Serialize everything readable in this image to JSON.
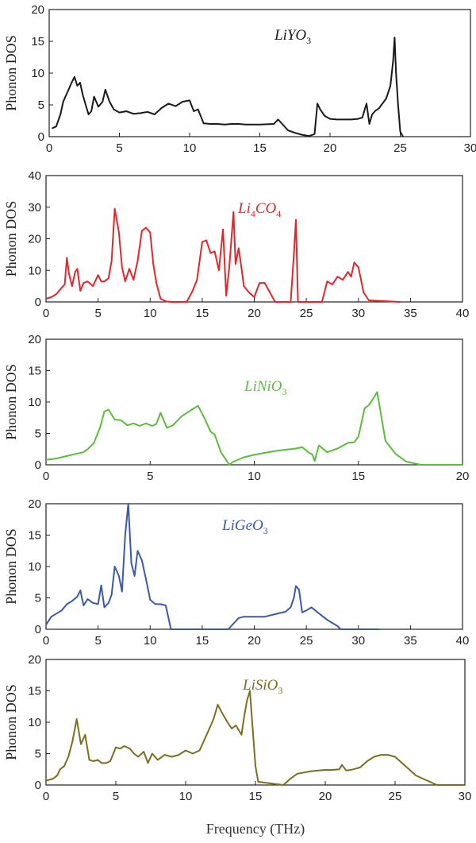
{
  "figure": {
    "xlabel": "Frequency (THz)"
  },
  "chart_data": [
    {
      "type": "line",
      "title": "LiYO",
      "title_sub": "3",
      "ylabel": "Phonon DOS",
      "color": "#1a1a1a",
      "xlim": [
        0,
        30
      ],
      "ylim": [
        0,
        20
      ],
      "xticks": [
        0,
        5,
        10,
        15,
        20,
        25,
        30
      ],
      "yticks": [
        0,
        5,
        10,
        15,
        20
      ],
      "x": [
        0.2,
        0.5,
        0.8,
        1.0,
        1.2,
        1.4,
        1.6,
        1.8,
        2.0,
        2.2,
        2.4,
        2.6,
        2.8,
        3.0,
        3.2,
        3.5,
        3.8,
        4.0,
        4.3,
        4.6,
        5.0,
        5.5,
        6.0,
        6.5,
        7.0,
        7.5,
        8.0,
        8.5,
        9.0,
        9.5,
        10.0,
        10.3,
        10.6,
        11.0,
        11.5,
        12.0,
        12.5,
        13.0,
        13.5,
        14.0,
        15.0,
        16.0,
        16.3,
        16.6,
        17.0,
        17.5,
        18.0,
        18.5,
        18.9,
        19.1,
        19.3,
        19.6,
        20.0,
        20.5,
        21.0,
        21.5,
        22.0,
        22.3,
        22.6,
        22.8,
        23.0,
        23.2,
        23.5,
        24.0,
        24.3,
        24.5,
        24.6,
        24.7,
        24.85,
        25.0,
        25.2
      ],
      "y": [
        1.3,
        1.6,
        3.5,
        5.5,
        6.5,
        7.5,
        8.5,
        9.4,
        8.0,
        8.5,
        6.5,
        5.0,
        3.5,
        4.0,
        6.3,
        4.7,
        5.5,
        7.4,
        5.5,
        4.3,
        3.8,
        4.0,
        3.6,
        3.7,
        3.9,
        3.5,
        4.5,
        5.2,
        4.8,
        5.5,
        5.7,
        4.0,
        4.3,
        2.1,
        2.0,
        2.0,
        1.9,
        2.0,
        2.0,
        1.9,
        1.9,
        2.0,
        2.7,
        2.0,
        1.0,
        0.6,
        0.3,
        0.1,
        0.4,
        5.2,
        4.3,
        3.3,
        2.8,
        2.7,
        2.7,
        2.7,
        2.8,
        3.0,
        5.2,
        2.0,
        3.5,
        4.0,
        4.5,
        6.0,
        8.0,
        12.0,
        15.6,
        10.0,
        5.0,
        0.8,
        0
      ]
    },
    {
      "type": "line",
      "title": "Li",
      "title_sub": "4",
      "title_rest": "CO",
      "title_sub2": "4",
      "ylabel": "Phonon DOS",
      "color": "#e3262a",
      "xlim": [
        0,
        40
      ],
      "ylim": [
        0,
        40
      ],
      "xticks": [
        0,
        5,
        10,
        15,
        20,
        25,
        30,
        35,
        40
      ],
      "yticks": [
        0,
        10,
        20,
        30,
        40
      ],
      "x": [
        0,
        0.5,
        1.0,
        1.5,
        1.8,
        2.0,
        2.2,
        2.5,
        2.8,
        3.0,
        3.3,
        3.6,
        4.0,
        4.5,
        5.0,
        5.3,
        5.6,
        6.0,
        6.3,
        6.6,
        7.0,
        7.3,
        7.6,
        8.0,
        8.4,
        8.8,
        9.2,
        9.6,
        10.0,
        10.3,
        10.6,
        11.0,
        11.5,
        12.0,
        13.5,
        14.0,
        14.5,
        15.0,
        15.4,
        15.8,
        16.2,
        16.6,
        17.0,
        17.3,
        17.6,
        18.0,
        18.2,
        18.5,
        18.8,
        19.0,
        19.5,
        20.0,
        20.5,
        21.0,
        21.5,
        22.0,
        23.5,
        23.8,
        24.0,
        24.2,
        24.5,
        26.5,
        27.0,
        27.5,
        28.0,
        28.5,
        29.0,
        29.3,
        29.6,
        30.0,
        30.5,
        31.0,
        34.0
      ],
      "y": [
        1,
        1.5,
        2.5,
        4.5,
        5.5,
        14.0,
        9.0,
        5.0,
        9.5,
        10.5,
        3.5,
        6.0,
        6.5,
        5.0,
        8.5,
        6.5,
        6.5,
        7.5,
        13.0,
        29.5,
        22.0,
        11.0,
        6.5,
        10.5,
        7.0,
        13.0,
        22.5,
        23.5,
        22.0,
        12.0,
        6.0,
        1.0,
        0.2,
        0,
        0,
        3.0,
        7.0,
        19.0,
        19.5,
        15.5,
        16.0,
        10.0,
        23.0,
        2.0,
        11.0,
        28.5,
        12.0,
        17.0,
        10.0,
        5.0,
        3.0,
        1.5,
        6.0,
        6.0,
        3.0,
        0,
        0,
        15.0,
        26.0,
        0,
        0,
        0,
        6.5,
        5.5,
        8.0,
        7.0,
        9.5,
        8.0,
        12.5,
        11.0,
        3.0,
        0.5,
        0
      ]
    },
    {
      "type": "line",
      "title": "LiNiO",
      "title_sub": "3",
      "ylabel": "Phonon DOS",
      "color": "#5bbd3c",
      "xlim": [
        0,
        20
      ],
      "ylim": [
        0,
        20
      ],
      "xticks": [
        0,
        5,
        10,
        15,
        20
      ],
      "yticks": [
        0,
        5,
        10,
        15,
        20
      ],
      "x": [
        0,
        0.5,
        1.0,
        1.5,
        1.8,
        2.0,
        2.3,
        2.6,
        2.8,
        3.0,
        3.3,
        3.6,
        3.9,
        4.2,
        4.5,
        4.8,
        5.1,
        5.3,
        5.5,
        5.8,
        6.1,
        6.5,
        7.0,
        7.3,
        7.6,
        7.9,
        8.1,
        8.4,
        8.6,
        8.8,
        9.0,
        9.5,
        10.0,
        10.5,
        11.0,
        11.5,
        12.0,
        12.3,
        12.6,
        12.8,
        12.9,
        13.1,
        13.5,
        14.0,
        14.5,
        14.8,
        15.0,
        15.3,
        15.5,
        15.7,
        15.9,
        16.3,
        16.8,
        17.3,
        18.0,
        20.0
      ],
      "y": [
        0.8,
        1.0,
        1.4,
        1.8,
        2.0,
        2.5,
        3.5,
        6.0,
        8.5,
        8.8,
        7.2,
        7.1,
        6.3,
        6.6,
        6.2,
        6.6,
        6.2,
        6.5,
        8.3,
        5.9,
        6.3,
        7.7,
        8.8,
        9.4,
        7.5,
        5.3,
        4.8,
        2.0,
        1.0,
        0,
        0.5,
        1.2,
        1.6,
        1.9,
        2.2,
        2.4,
        2.6,
        2.8,
        2.0,
        1.6,
        0.6,
        3.1,
        2.0,
        2.6,
        3.5,
        3.6,
        4.5,
        9.0,
        9.5,
        10.5,
        11.6,
        3.8,
        1.7,
        0.5,
        0,
        0
      ]
    },
    {
      "type": "line",
      "title": "LiGeO",
      "title_sub": "3",
      "ylabel": "Phonon DOS",
      "color": "#3a5aa8",
      "xlim": [
        0,
        40
      ],
      "ylim": [
        0,
        20
      ],
      "xticks": [
        0,
        5,
        10,
        15,
        20,
        25,
        30,
        35,
        40
      ],
      "yticks": [
        0,
        5,
        10,
        15,
        20
      ],
      "x": [
        0,
        0.5,
        1.0,
        1.5,
        2.0,
        2.5,
        3.0,
        3.3,
        3.6,
        4.0,
        4.5,
        5.0,
        5.3,
        5.6,
        6.0,
        6.3,
        6.6,
        7.0,
        7.3,
        7.6,
        7.9,
        8.2,
        8.5,
        8.8,
        9.2,
        9.6,
        10.0,
        10.5,
        11.0,
        11.5,
        12.0,
        13.0,
        17.5,
        18.5,
        19.0,
        19.5,
        20.0,
        21.0,
        22.0,
        23.0,
        23.5,
        23.8,
        24.0,
        24.3,
        24.6,
        25.0,
        25.5,
        26.0,
        27.0,
        28.0,
        28.3,
        32.0
      ],
      "y": [
        0.7,
        2.0,
        2.5,
        3.0,
        4.0,
        4.5,
        5.2,
        6.2,
        3.8,
        4.8,
        4.2,
        4.0,
        7.0,
        3.5,
        4.2,
        5.5,
        10.0,
        8.5,
        6.0,
        15.0,
        20.0,
        10.5,
        8.5,
        12.5,
        11.0,
        8.0,
        4.7,
        4.0,
        4.0,
        3.8,
        0,
        0,
        0,
        1.8,
        2.0,
        2.0,
        2.0,
        2.0,
        2.4,
        2.8,
        3.5,
        5.0,
        6.9,
        6.3,
        2.7,
        3.0,
        3.5,
        2.8,
        1.5,
        0.5,
        0,
        0
      ]
    },
    {
      "type": "line",
      "title": "LiSiO",
      "title_sub": "3",
      "ylabel": "Phonon DOS",
      "color": "#7b6f1e",
      "xlim": [
        0,
        30
      ],
      "ylim": [
        0,
        20
      ],
      "xticks": [
        0,
        5,
        10,
        15,
        20,
        25,
        30
      ],
      "yticks": [
        0,
        5,
        10,
        15,
        20
      ],
      "x": [
        0,
        0.5,
        0.8,
        1.0,
        1.3,
        1.6,
        1.9,
        2.2,
        2.5,
        2.8,
        3.1,
        3.4,
        3.7,
        4.0,
        4.3,
        4.6,
        5.0,
        5.3,
        5.6,
        6.0,
        6.3,
        6.6,
        7.0,
        7.3,
        7.6,
        8.0,
        8.5,
        9.0,
        9.5,
        10.0,
        10.5,
        11.0,
        11.3,
        11.6,
        12.0,
        12.3,
        12.6,
        13.0,
        13.3,
        13.6,
        14.0,
        14.2,
        14.4,
        14.6,
        14.8,
        15.0,
        15.2,
        17.0,
        17.5,
        18.0,
        18.5,
        19.0,
        19.5,
        20.0,
        20.5,
        21.0,
        21.2,
        21.5,
        22.0,
        22.5,
        23.0,
        23.5,
        24.0,
        24.5,
        25.0,
        25.5,
        26.0,
        26.5,
        27.0,
        27.5,
        28.0,
        30.0
      ],
      "y": [
        0.7,
        1.0,
        1.5,
        2.5,
        3.0,
        4.5,
        7.0,
        10.5,
        6.5,
        8.0,
        4.0,
        3.8,
        4.0,
        3.5,
        3.5,
        3.8,
        6.0,
        5.8,
        6.2,
        5.8,
        5.0,
        4.5,
        5.3,
        3.5,
        5.0,
        4.0,
        4.8,
        4.5,
        4.8,
        5.5,
        5.0,
        5.5,
        7.0,
        8.5,
        10.5,
        12.8,
        11.5,
        10.0,
        9.0,
        9.5,
        8.0,
        11.0,
        13.5,
        15.0,
        9.0,
        3.0,
        0.5,
        0,
        1.0,
        1.8,
        2.0,
        2.2,
        2.3,
        2.4,
        2.4,
        2.5,
        3.2,
        2.3,
        2.5,
        2.8,
        3.8,
        4.5,
        4.8,
        4.8,
        4.5,
        3.5,
        2.5,
        1.5,
        1.0,
        0.5,
        0,
        0
      ]
    }
  ]
}
